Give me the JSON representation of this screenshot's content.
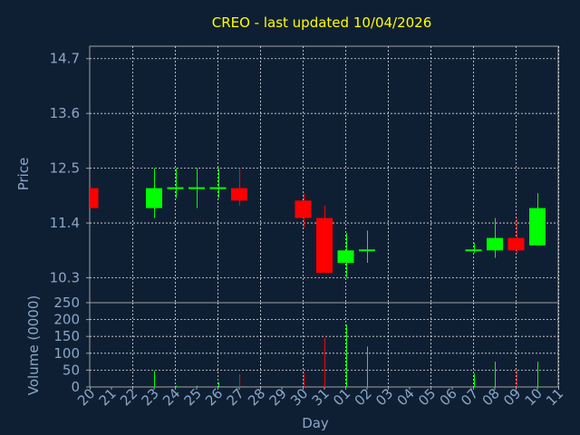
{
  "chart_data": {
    "type": "candlestick",
    "title": "CREO - last updated 10/04/2026",
    "price_panel": {
      "ylabel": "Price",
      "ylim": [
        9.8,
        14.95
      ],
      "yticks": [
        10.3,
        11.4,
        12.5,
        13.6,
        14.7
      ],
      "ytick_labels": [
        "10.3",
        "11.4",
        "12.5",
        "13.6",
        "14.7"
      ],
      "grid": true
    },
    "volume_panel": {
      "ylabel": "Volume (0000)",
      "ylim": [
        0,
        250
      ],
      "yticks": [
        0,
        50,
        100,
        150,
        200,
        250
      ],
      "ytick_labels": [
        "0",
        "50",
        "100",
        "150",
        "200",
        "250"
      ],
      "grid": true
    },
    "xlabel": "Day",
    "x_labels": [
      "20",
      "21",
      "22",
      "23",
      "24",
      "25",
      "26",
      "27",
      "28",
      "29",
      "30",
      "31",
      "01",
      "02",
      "03",
      "04",
      "05",
      "06",
      "07",
      "08",
      "09",
      "10",
      "11"
    ],
    "colors": {
      "up": "#00ff00",
      "down": "#ff0000",
      "neutral": "#00ff00",
      "title": "#ffff00",
      "axis_text": "#8aa7c6",
      "grid": "#ffffff",
      "frame": "#a0a0a0"
    },
    "candles": [
      {
        "day": "20",
        "open": 12.1,
        "high": 12.1,
        "low": 11.7,
        "close": 11.7,
        "volume": 0
      },
      {
        "day": "23",
        "open": 11.7,
        "high": 12.5,
        "low": 11.5,
        "close": 12.1,
        "volume": 48
      },
      {
        "day": "24",
        "open": 12.1,
        "high": 12.5,
        "low": 11.9,
        "close": 12.1,
        "volume": 4
      },
      {
        "day": "25",
        "open": 12.1,
        "high": 12.5,
        "low": 11.7,
        "close": 12.1,
        "volume": 4
      },
      {
        "day": "26",
        "open": 12.1,
        "high": 12.5,
        "low": 11.9,
        "close": 12.1,
        "volume": 14
      },
      {
        "day": "27",
        "open": 12.1,
        "high": 12.5,
        "low": 11.75,
        "close": 11.85,
        "volume": 38
      },
      {
        "day": "30",
        "open": 11.85,
        "high": 12.0,
        "low": 11.3,
        "close": 11.5,
        "volume": 42
      },
      {
        "day": "31",
        "open": 11.5,
        "high": 11.75,
        "low": 10.4,
        "close": 10.4,
        "volume": 145
      },
      {
        "day": "01",
        "open": 10.6,
        "high": 11.2,
        "low": 10.3,
        "close": 10.85,
        "volume": 185
      },
      {
        "day": "02",
        "open": 10.85,
        "high": 11.25,
        "low": 10.6,
        "close": 10.85,
        "volume": 120
      },
      {
        "day": "07",
        "open": 10.85,
        "high": 11.0,
        "low": 10.8,
        "close": 10.85,
        "volume": 40
      },
      {
        "day": "08",
        "open": 10.85,
        "high": 11.5,
        "low": 10.7,
        "close": 11.1,
        "volume": 75
      },
      {
        "day": "09",
        "open": 11.1,
        "high": 11.5,
        "low": 10.8,
        "close": 10.85,
        "volume": 50
      },
      {
        "day": "10",
        "open": 10.95,
        "high": 12.0,
        "low": 10.95,
        "close": 11.7,
        "volume": 75
      }
    ]
  }
}
